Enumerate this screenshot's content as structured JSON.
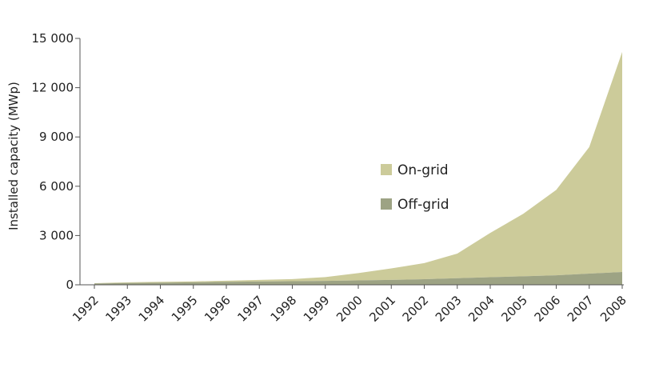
{
  "chart_data": {
    "type": "area",
    "stacked": true,
    "ylabel": "Installed capacity (MWp)",
    "xlabel": "",
    "ylim": [
      0,
      15000
    ],
    "yticks": [
      0,
      3000,
      6000,
      9000,
      12000,
      15000
    ],
    "ytick_labels": [
      "0",
      "3 000",
      "6 000",
      "9 000",
      "12 000",
      "15 000"
    ],
    "categories": [
      "1992",
      "1993",
      "1994",
      "1995",
      "1996",
      "1997",
      "1998",
      "1999",
      "2000",
      "2001",
      "2002",
      "2003",
      "2004",
      "2005",
      "2006",
      "2007",
      "2008"
    ],
    "series": [
      {
        "name": "Off-grid",
        "color": "#9da384",
        "values": [
          80,
          110,
          130,
          150,
          180,
          200,
          220,
          240,
          270,
          300,
          340,
          400,
          460,
          520,
          580,
          680,
          780
        ]
      },
      {
        "name": "On-grid",
        "color": "#cccb9a",
        "values": [
          20,
          40,
          50,
          60,
          70,
          100,
          130,
          230,
          440,
          700,
          980,
          1500,
          2700,
          3800,
          5200,
          7700,
          13400
        ]
      }
    ],
    "legend": {
      "placement": "center-right",
      "order": [
        "On-grid",
        "Off-grid"
      ]
    },
    "grid": false
  }
}
